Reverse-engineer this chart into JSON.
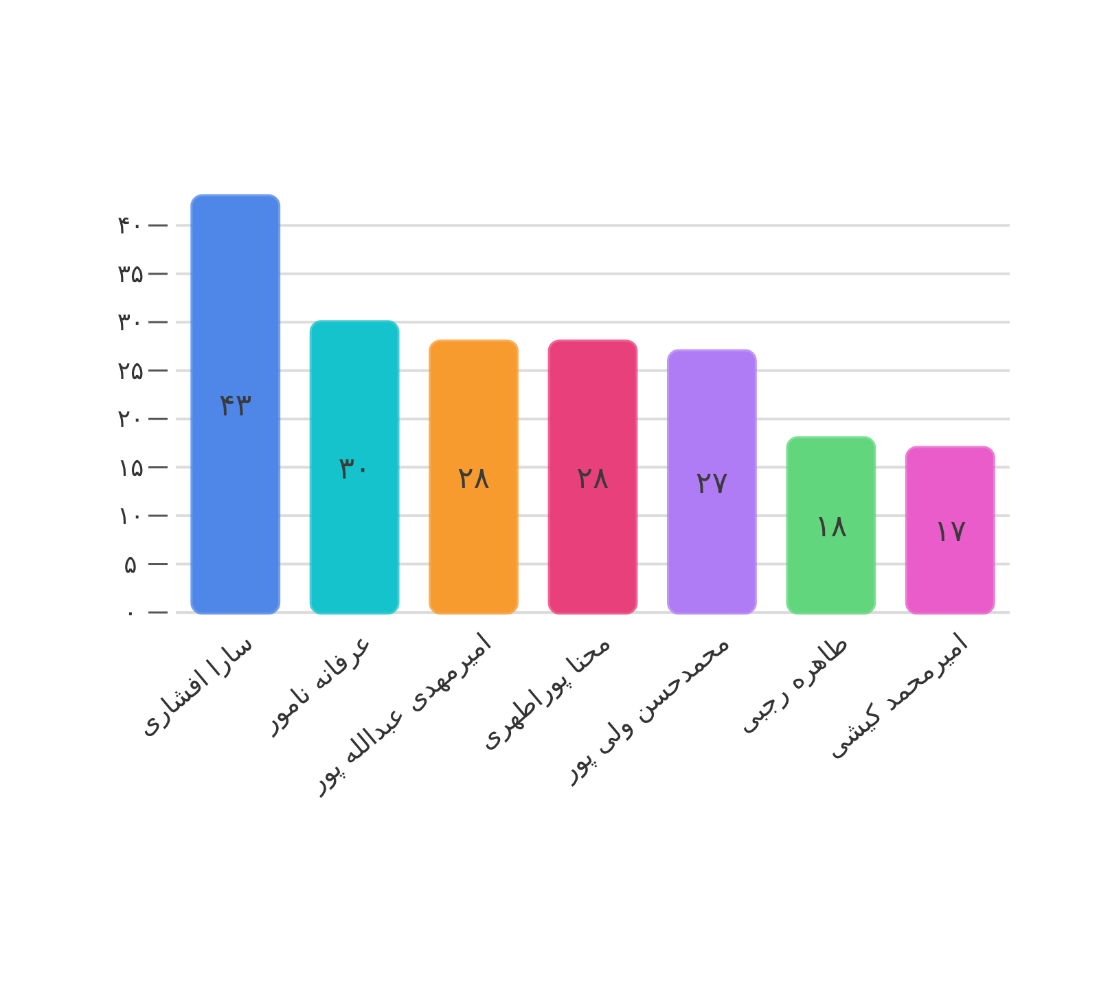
{
  "chart_data": {
    "type": "bar",
    "categories": [
      "سارا افشاری",
      "عرفانه نامور",
      "امیرمهدی عبدالله پور",
      "محنا پوراطهری",
      "محمدحسن ولی پور",
      "طاهره رجبی",
      "امیرمحمد کیشی"
    ],
    "values": [
      43,
      30,
      28,
      28,
      27,
      18,
      17
    ],
    "colors": [
      "#4f87e8",
      "#14c3cb",
      "#f89b2f",
      "#e8407a",
      "#b07cf5",
      "#62d67c",
      "#e95cc9"
    ],
    "value_labels": [
      "۴۳",
      "۳۰",
      "۲۸",
      "۲۸",
      "۲۷",
      "۱۸",
      "۱۷"
    ],
    "ylim": [
      0,
      43
    ],
    "yticks": [
      {
        "value": 0,
        "label": "۰"
      },
      {
        "value": 5,
        "label": "۵"
      },
      {
        "value": 10,
        "label": "۱۰"
      },
      {
        "value": 15,
        "label": "۱۵"
      },
      {
        "value": 20,
        "label": "۲۰"
      },
      {
        "value": 25,
        "label": "۲۵"
      },
      {
        "value": 30,
        "label": "۳۰"
      },
      {
        "value": 35,
        "label": "۳۵"
      },
      {
        "value": 40,
        "label": "۴۰"
      }
    ],
    "grid": "y"
  }
}
